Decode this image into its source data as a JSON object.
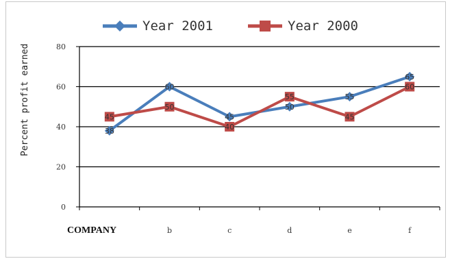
{
  "chart_data": {
    "type": "line",
    "ylabel": "Percent profit earned",
    "categories": [
      "COMPANY",
      "b",
      "c",
      "d",
      "e",
      "f"
    ],
    "ylim": [
      0,
      80
    ],
    "yticks": [
      0,
      20,
      40,
      60,
      80
    ],
    "grid": true,
    "legend_position": "top",
    "series": [
      {
        "name": "Year 2001",
        "values": [
          38,
          60,
          45,
          50,
          55,
          65
        ],
        "color": "#4a7ebb",
        "marker": "diamond"
      },
      {
        "name": "Year 2000",
        "values": [
          45,
          50,
          40,
          55,
          45,
          60
        ],
        "color": "#be4b48",
        "marker": "square"
      }
    ]
  }
}
